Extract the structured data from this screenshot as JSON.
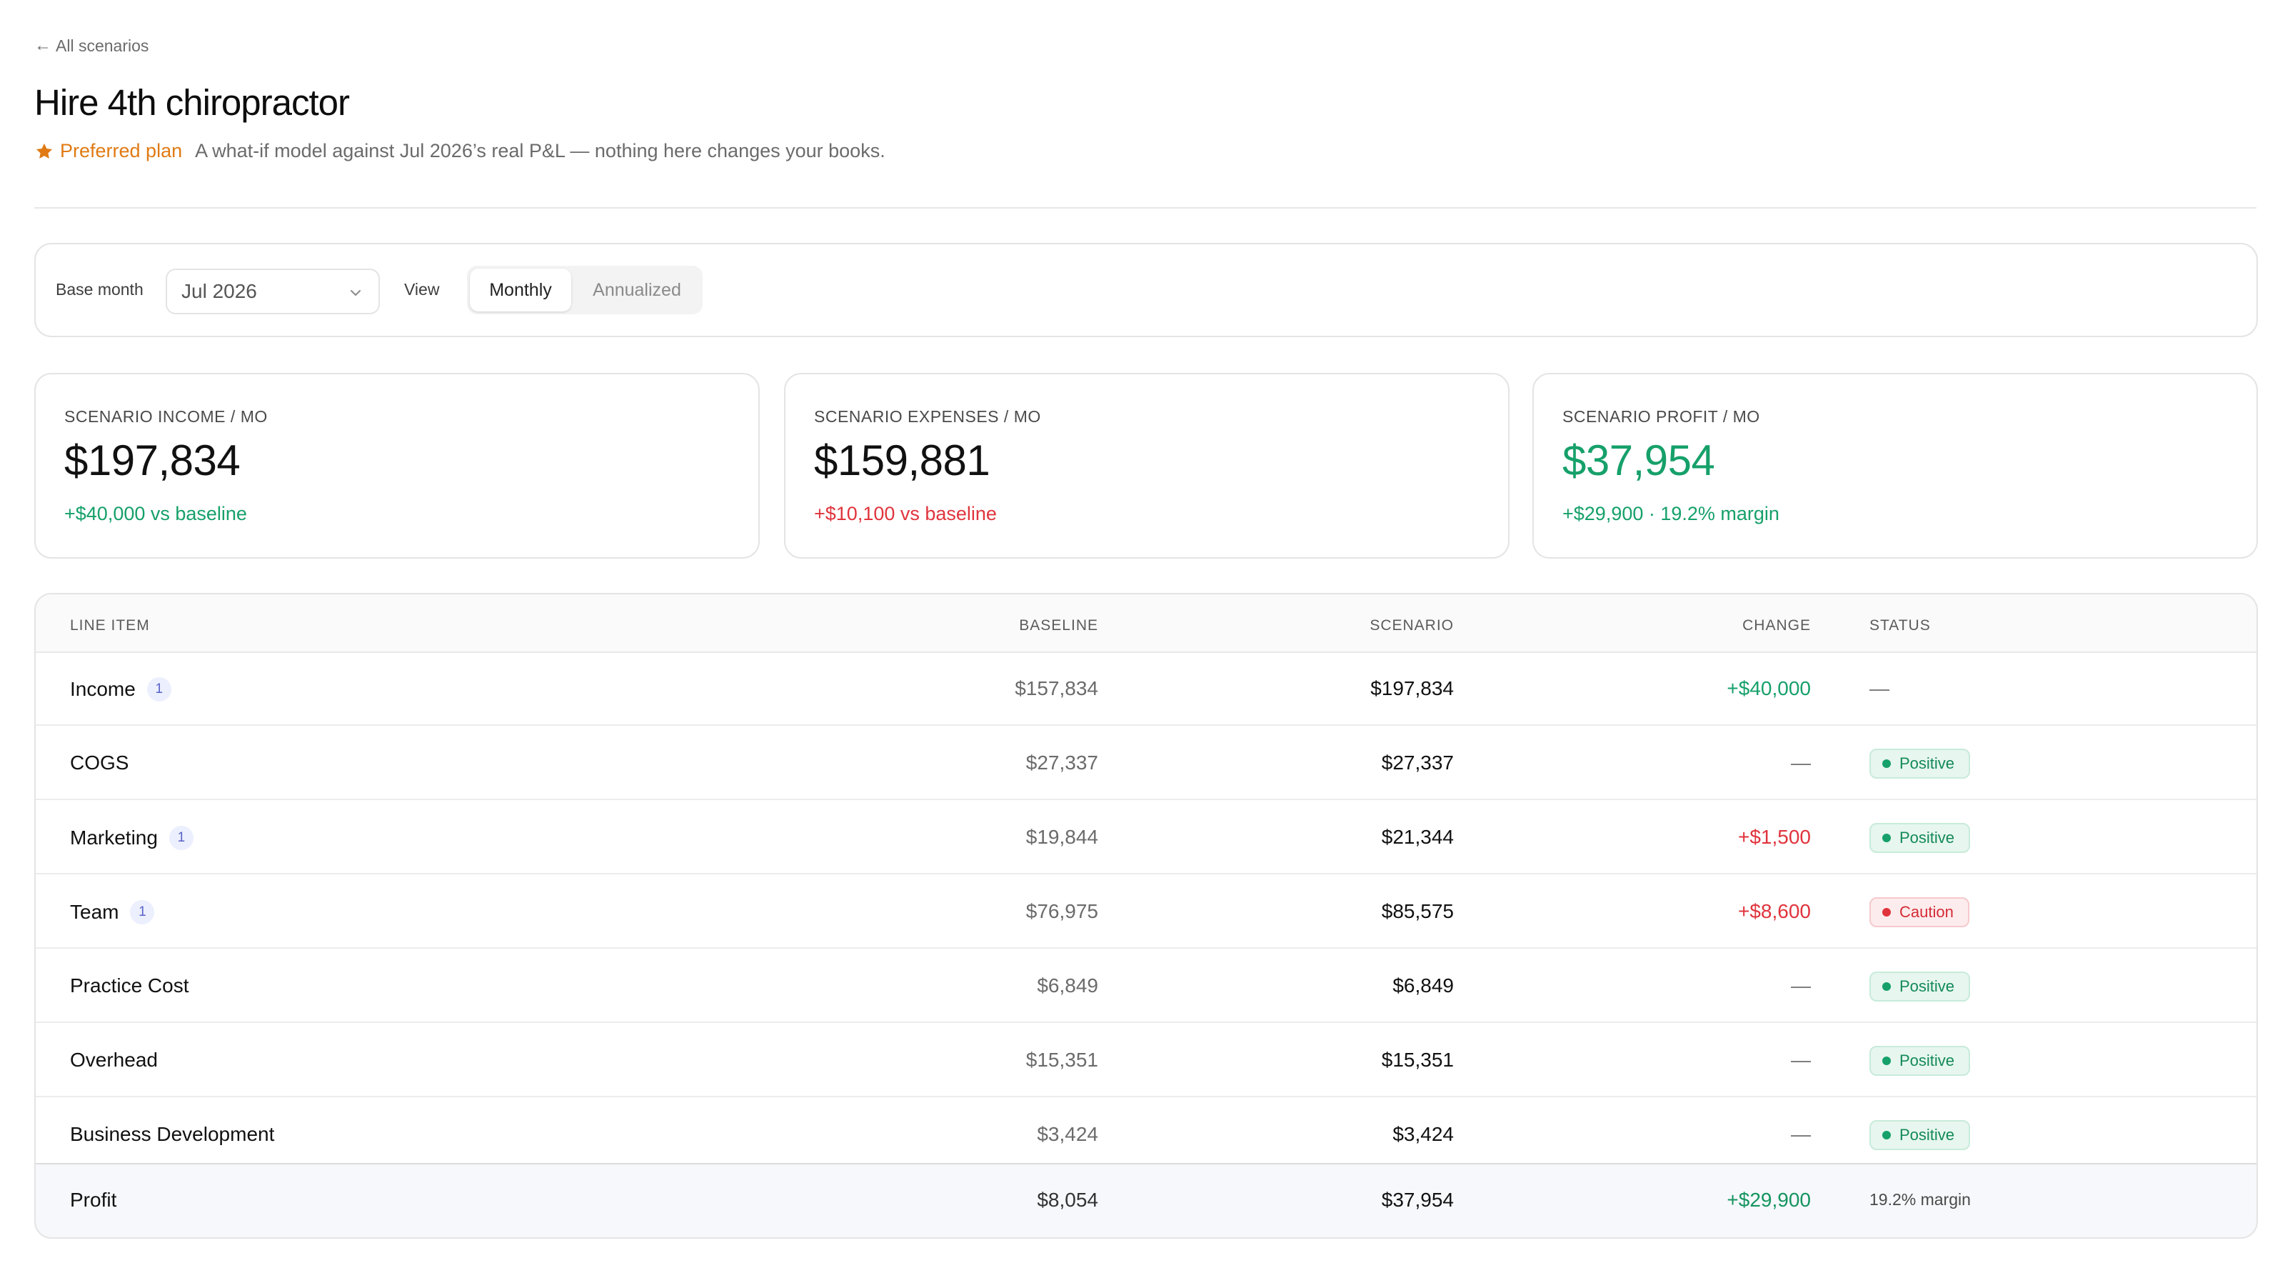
{
  "nav": {
    "back_label": "All scenarios"
  },
  "header": {
    "title": "Hire 4th chiropractor",
    "badge_label": "Preferred plan",
    "subtitle": "A what-if model against Jul 2026’s real P&L — nothing here changes your books."
  },
  "controls": {
    "base_month_label": "Base month",
    "base_month_value": "Jul 2026",
    "view_label": "View",
    "view_options": [
      "Monthly",
      "Annualized"
    ],
    "view_selected": "Monthly"
  },
  "kpis": [
    {
      "label": "SCENARIO INCOME / MO",
      "value": "$197,834",
      "delta": "+$40,000 vs baseline"
    },
    {
      "label": "SCENARIO EXPENSES / MO",
      "value": "$159,881",
      "delta": "+$10,100 vs baseline"
    },
    {
      "label": "SCENARIO PROFIT / MO",
      "value": "$37,954",
      "delta": "+$29,900 · 19.2% margin"
    }
  ],
  "table": {
    "headers": {
      "item": "LINE ITEM",
      "baseline": "BASELINE",
      "scenario": "SCENARIO",
      "change": "CHANGE",
      "status": "STATUS"
    },
    "rows": [
      {
        "item": "Income",
        "count": "1",
        "baseline": "$157,834",
        "scenario": "$197,834",
        "change": "+$40,000",
        "status": "—"
      },
      {
        "item": "COGS",
        "baseline": "$27,337",
        "scenario": "$27,337",
        "change": "—",
        "status": "Positive"
      },
      {
        "item": "Marketing",
        "count": "1",
        "baseline": "$19,844",
        "scenario": "$21,344",
        "change": "+$1,500",
        "status": "Positive"
      },
      {
        "item": "Team",
        "count": "1",
        "baseline": "$76,975",
        "scenario": "$85,575",
        "change": "+$8,600",
        "status": "Caution"
      },
      {
        "item": "Practice Cost",
        "baseline": "$6,849",
        "scenario": "$6,849",
        "change": "—",
        "status": "Positive"
      },
      {
        "item": "Overhead",
        "baseline": "$15,351",
        "scenario": "$15,351",
        "change": "—",
        "status": "Positive"
      },
      {
        "item": "Business Development",
        "baseline": "$3,424",
        "scenario": "$3,424",
        "change": "—",
        "status": "Positive"
      }
    ],
    "total": {
      "item": "Profit",
      "baseline": "$8,054",
      "scenario": "$37,954",
      "change": "+$29,900",
      "status": "19.2% margin"
    }
  },
  "colors": {
    "accent_orange": "#e07a13",
    "positive": "#16a06a",
    "negative": "#e0343d",
    "count_badge": "#5862c9"
  }
}
